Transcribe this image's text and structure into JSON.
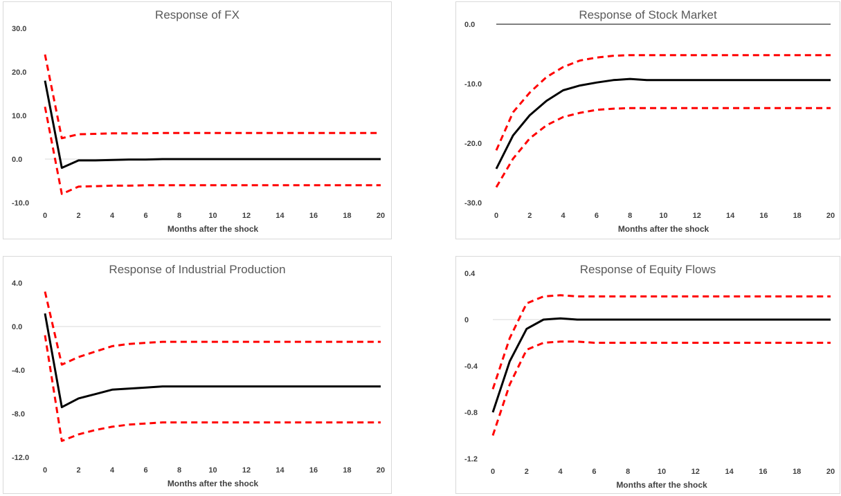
{
  "chart_data": [
    {
      "type": "line",
      "title": "Response of FX",
      "xlabel": "Months after the shock",
      "ylabel": "",
      "ylim": [
        -10,
        30
      ],
      "yticks": [
        -10,
        0,
        10,
        20,
        30
      ],
      "ytick_labels": [
        "-10.0",
        "0.0",
        "10.0",
        "20.0",
        "30.0"
      ],
      "xlim": [
        0,
        20
      ],
      "xticks": [
        0,
        2,
        4,
        6,
        8,
        10,
        12,
        14,
        16,
        18,
        20
      ],
      "x": [
        0,
        1,
        2,
        3,
        4,
        5,
        6,
        7,
        8,
        9,
        10,
        11,
        12,
        13,
        14,
        15,
        16,
        17,
        18,
        19,
        20
      ],
      "zero_line": true,
      "series": [
        {
          "role": "irf",
          "values": [
            18,
            -2,
            -0.3,
            -0.3,
            -0.2,
            -0.1,
            -0.1,
            0,
            0,
            0,
            0,
            0,
            0,
            0,
            0,
            0,
            0,
            0,
            0,
            0,
            0
          ]
        },
        {
          "role": "upper",
          "values": [
            24,
            4.8,
            5.7,
            5.8,
            5.9,
            5.9,
            5.9,
            6,
            6,
            6,
            6,
            6,
            6,
            6,
            6,
            6,
            6,
            6,
            6,
            6,
            6
          ]
        },
        {
          "role": "lower",
          "values": [
            12,
            -8,
            -6.3,
            -6.2,
            -6.1,
            -6.1,
            -6,
            -6,
            -6,
            -6,
            -6,
            -6,
            -6,
            -6,
            -6,
            -6,
            -6,
            -6,
            -6,
            -6,
            -6
          ]
        }
      ]
    },
    {
      "type": "line",
      "title": "Response of Stock Market",
      "xlabel": "Months after the shock",
      "ylabel": "",
      "ylim": [
        -30,
        0
      ],
      "yticks": [
        -30,
        -20,
        -10,
        0
      ],
      "ytick_labels": [
        "-30.0",
        "-20.0",
        "-10.0",
        "0.0"
      ],
      "xlim": [
        0,
        20
      ],
      "xticks": [
        0,
        2,
        4,
        6,
        8,
        10,
        12,
        14,
        16,
        18,
        20
      ],
      "x": [
        0,
        1,
        2,
        3,
        4,
        5,
        6,
        7,
        8,
        9,
        10,
        11,
        12,
        13,
        14,
        15,
        16,
        17,
        18,
        19,
        20
      ],
      "zero_line": true,
      "series": [
        {
          "role": "irf",
          "values": [
            -24.3,
            -18.7,
            -15.3,
            -12.9,
            -11.1,
            -10.3,
            -9.8,
            -9.4,
            -9.2,
            -9.4,
            -9.4,
            -9.4,
            -9.4,
            -9.4,
            -9.4,
            -9.4,
            -9.4,
            -9.4,
            -9.4,
            -9.4,
            -9.4
          ]
        },
        {
          "role": "upper",
          "values": [
            -21.2,
            -14.8,
            -11.5,
            -8.9,
            -7.2,
            -6.1,
            -5.6,
            -5.3,
            -5.2,
            -5.2,
            -5.2,
            -5.2,
            -5.2,
            -5.2,
            -5.2,
            -5.2,
            -5.2,
            -5.2,
            -5.2,
            -5.2,
            -5.2
          ]
        },
        {
          "role": "lower",
          "values": [
            -27.4,
            -22.6,
            -19.2,
            -17,
            -15.6,
            -14.9,
            -14.4,
            -14.2,
            -14.1,
            -14.1,
            -14.1,
            -14.1,
            -14.1,
            -14.1,
            -14.1,
            -14.1,
            -14.1,
            -14.1,
            -14.1,
            -14.1,
            -14.1
          ]
        }
      ]
    },
    {
      "type": "line",
      "title": "Response of Industrial Production",
      "xlabel": "Months after the shock",
      "ylabel": "",
      "ylim": [
        -12,
        4
      ],
      "yticks": [
        -12,
        -8,
        -4,
        0,
        4
      ],
      "ytick_labels": [
        "-12.0",
        "-8.0",
        "-4.0",
        "0.0",
        "4.0"
      ],
      "xlim": [
        0,
        20
      ],
      "xticks": [
        0,
        2,
        4,
        6,
        8,
        10,
        12,
        14,
        16,
        18,
        20
      ],
      "x": [
        0,
        1,
        2,
        3,
        4,
        5,
        6,
        7,
        8,
        9,
        10,
        11,
        12,
        13,
        14,
        15,
        16,
        17,
        18,
        19,
        20
      ],
      "zero_line": true,
      "series": [
        {
          "role": "irf",
          "values": [
            1.2,
            -7.4,
            -6.6,
            -6.2,
            -5.8,
            -5.7,
            -5.6,
            -5.5,
            -5.5,
            -5.5,
            -5.5,
            -5.5,
            -5.5,
            -5.5,
            -5.5,
            -5.5,
            -5.5,
            -5.5,
            -5.5,
            -5.5,
            -5.5
          ]
        },
        {
          "role": "upper",
          "values": [
            3.2,
            -3.5,
            -2.8,
            -2.3,
            -1.8,
            -1.6,
            -1.5,
            -1.4,
            -1.4,
            -1.4,
            -1.4,
            -1.4,
            -1.4,
            -1.4,
            -1.4,
            -1.4,
            -1.4,
            -1.4,
            -1.4,
            -1.4,
            -1.4
          ]
        },
        {
          "role": "lower",
          "values": [
            -0.8,
            -10.5,
            -9.9,
            -9.5,
            -9.2,
            -9,
            -8.9,
            -8.8,
            -8.8,
            -8.8,
            -8.8,
            -8.8,
            -8.8,
            -8.8,
            -8.8,
            -8.8,
            -8.8,
            -8.8,
            -8.8,
            -8.8,
            -8.8
          ]
        }
      ]
    },
    {
      "type": "line",
      "title": "Response of Equity Flows",
      "xlabel": "Months after the shock",
      "ylabel": "",
      "ylim": [
        -1.2,
        0.4
      ],
      "yticks": [
        -1.2,
        -0.8,
        -0.4,
        0,
        0.4
      ],
      "ytick_labels": [
        "-1.2",
        "-0.8",
        "-0.4",
        "0",
        "0.4"
      ],
      "xlim": [
        0,
        20
      ],
      "xticks": [
        0,
        2,
        4,
        6,
        8,
        10,
        12,
        14,
        16,
        18,
        20
      ],
      "x": [
        0,
        1,
        2,
        3,
        4,
        5,
        6,
        7,
        8,
        9,
        10,
        11,
        12,
        13,
        14,
        15,
        16,
        17,
        18,
        19,
        20
      ],
      "zero_line": true,
      "series": [
        {
          "role": "irf",
          "values": [
            -0.8,
            -0.36,
            -0.08,
            0,
            0.01,
            0,
            0,
            0,
            0,
            0,
            0,
            0,
            0,
            0,
            0,
            0,
            0,
            0,
            0,
            0,
            0
          ]
        },
        {
          "role": "upper",
          "values": [
            -0.6,
            -0.16,
            0.14,
            0.2,
            0.21,
            0.2,
            0.2,
            0.2,
            0.2,
            0.2,
            0.2,
            0.2,
            0.2,
            0.2,
            0.2,
            0.2,
            0.2,
            0.2,
            0.2,
            0.2,
            0.2
          ]
        },
        {
          "role": "lower",
          "values": [
            -1.0,
            -0.56,
            -0.26,
            -0.2,
            -0.19,
            -0.19,
            -0.2,
            -0.2,
            -0.2,
            -0.2,
            -0.2,
            -0.2,
            -0.2,
            -0.2,
            -0.2,
            -0.2,
            -0.2,
            -0.2,
            -0.2,
            -0.2,
            -0.2
          ]
        }
      ]
    }
  ],
  "style": {
    "irf_color": "#000000",
    "band_color": "#ff0000",
    "axis_color": "#000000",
    "zero_line_color": "#d9d9d9",
    "title_color": "#595959",
    "tick_color": "#404040"
  }
}
